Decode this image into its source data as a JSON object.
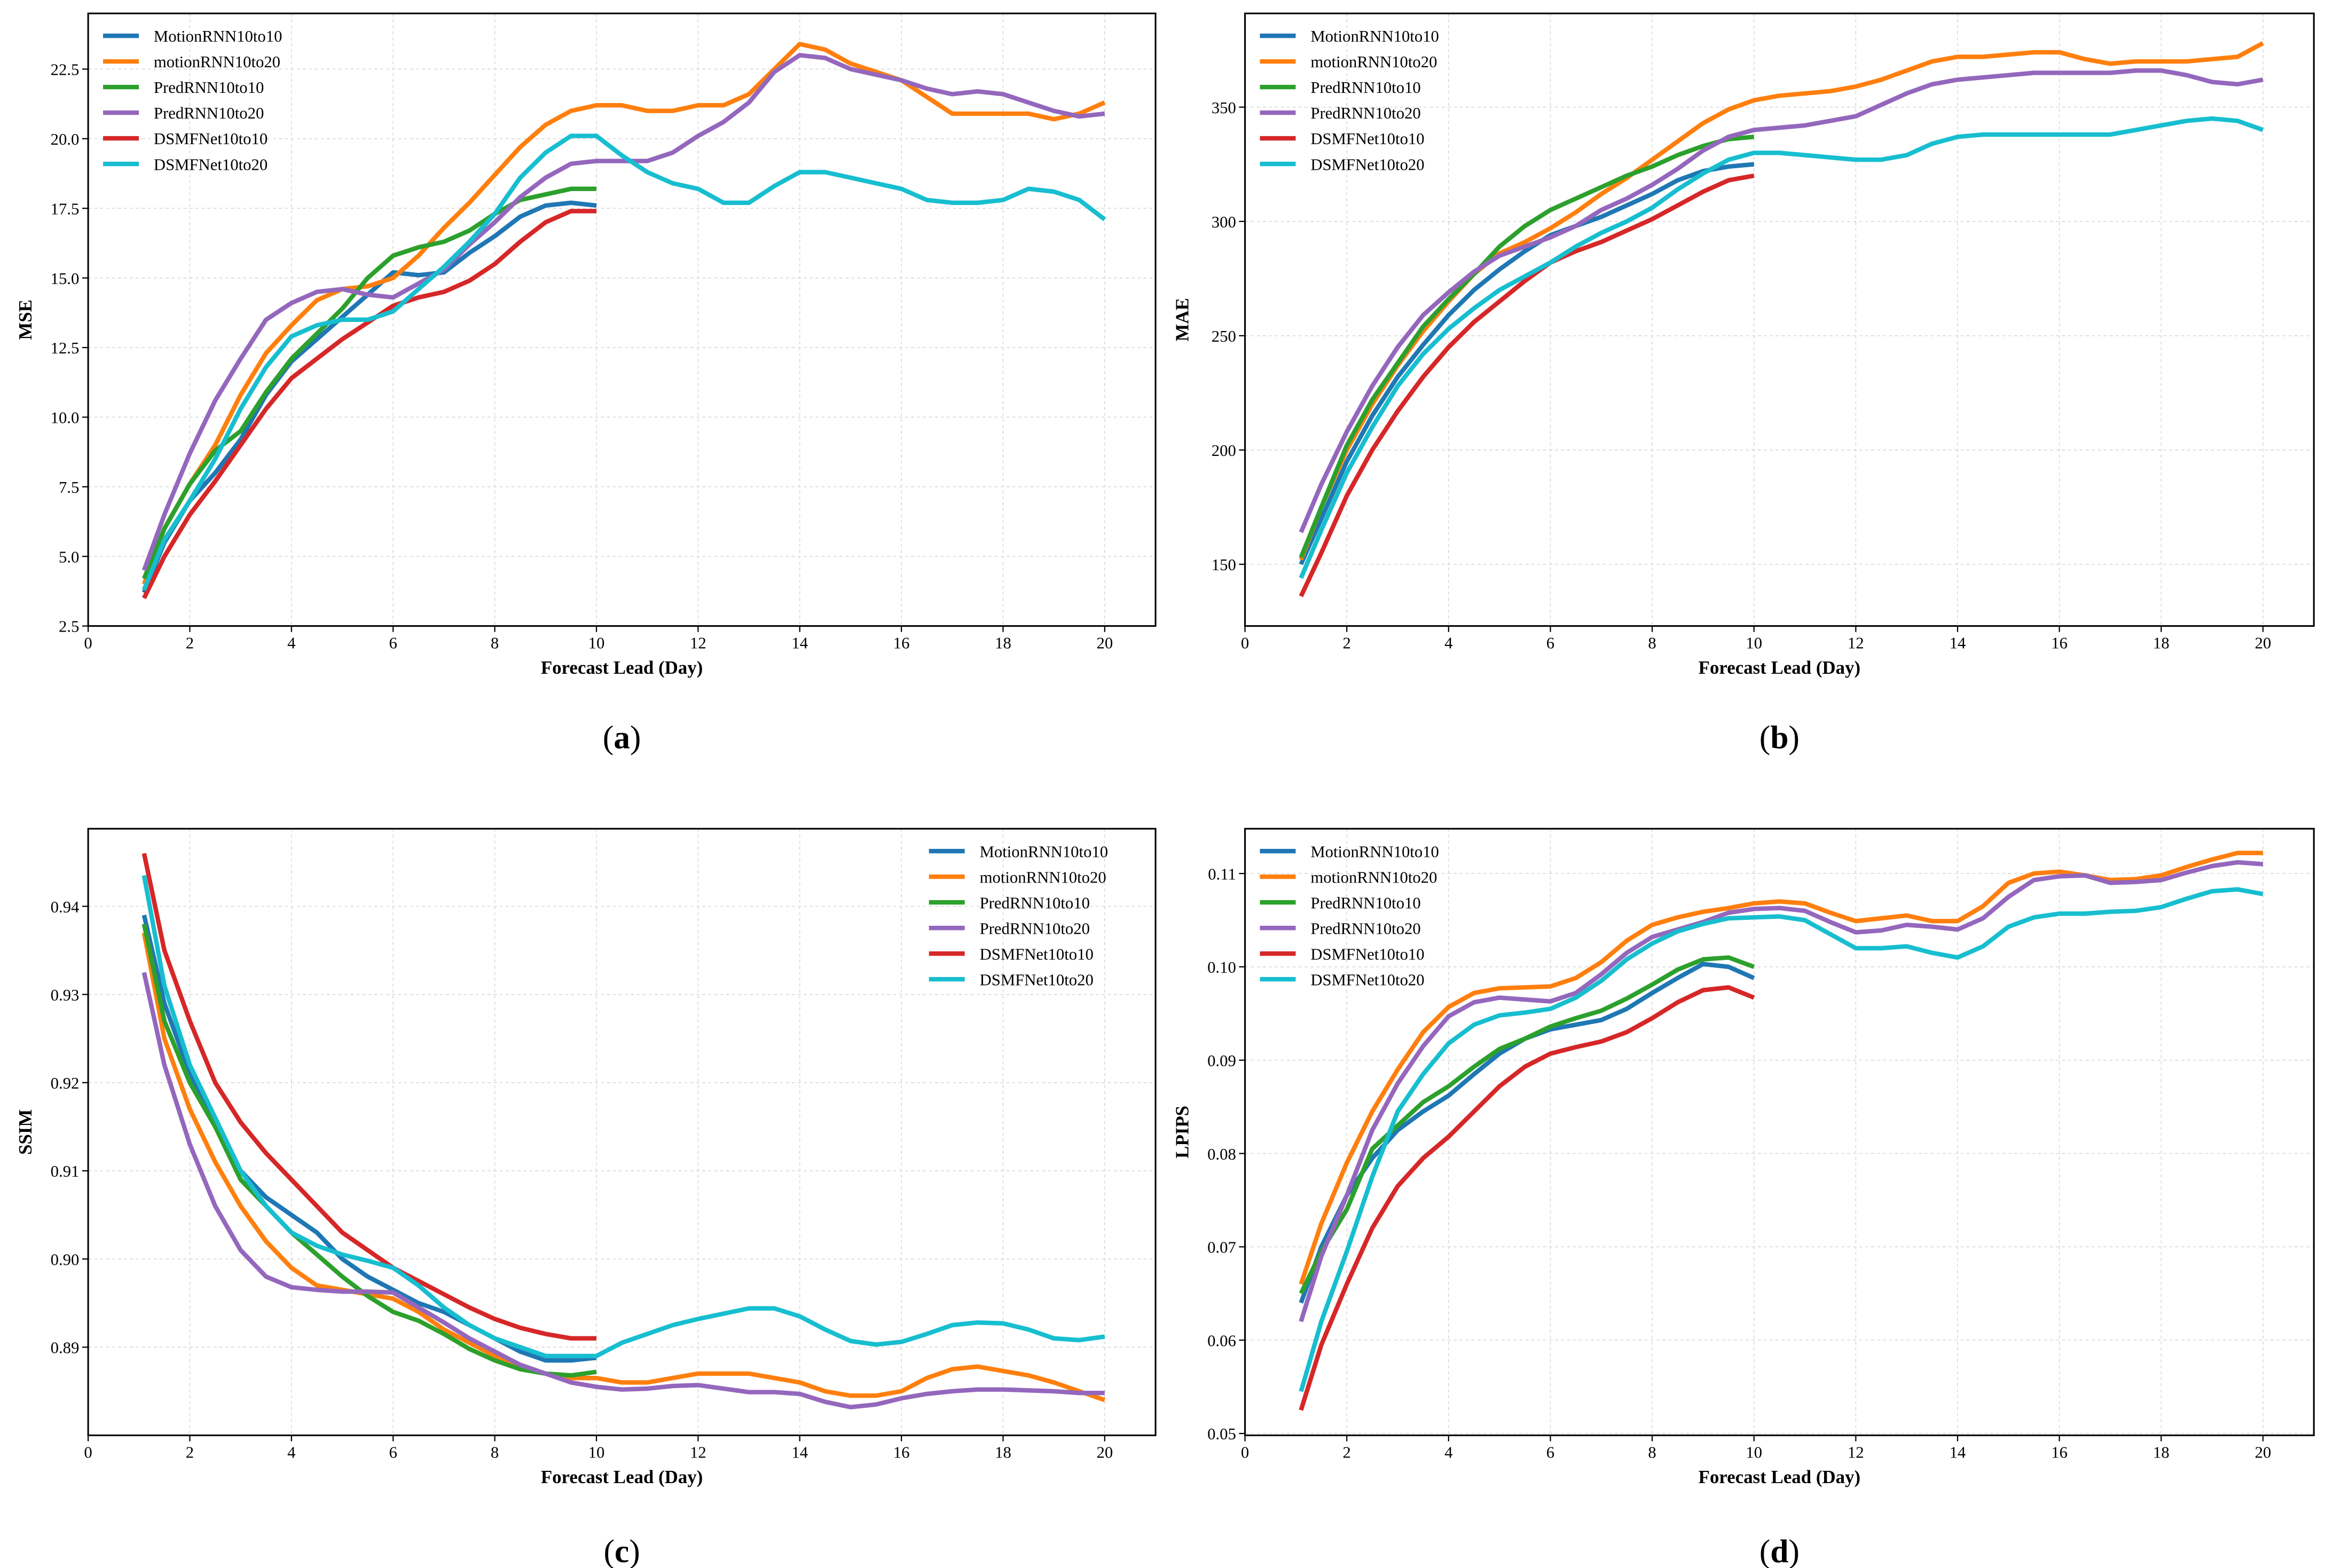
{
  "colors": {
    "MotionRNN10to10": "#1f77b4",
    "motionRNN10to20": "#ff7f0e",
    "PredRNN10to10": "#2ca02c",
    "PredRNN10to20": "#9467bd",
    "DSMFNet10to10": "#d62728",
    "DSMFNet10to20": "#17becf"
  },
  "x_short": [
    1.1,
    1.5,
    2,
    2.5,
    3,
    3.5,
    4,
    4.5,
    5,
    5.5,
    6,
    6.5,
    7,
    7.5,
    8,
    8.5,
    9,
    9.5,
    10
  ],
  "x_long": [
    1.1,
    1.5,
    2,
    2.5,
    3,
    3.5,
    4,
    4.5,
    5,
    5.5,
    6,
    6.5,
    7,
    7.5,
    8,
    8.5,
    9,
    9.5,
    10,
    10.5,
    11,
    11.5,
    12,
    12.5,
    13,
    13.5,
    14,
    14.5,
    15,
    15.5,
    16,
    16.5,
    17,
    17.5,
    18,
    18.5,
    19,
    19.5,
    20
  ],
  "chart_data": [
    {
      "type": "line",
      "caption_letter": "a",
      "xlabel": "Forecast Lead (Day)",
      "ylabel": "MSE",
      "xlim": [
        0,
        21
      ],
      "ylim": [
        2.5,
        24.5
      ],
      "xticks": [
        "0",
        "2",
        "4",
        "6",
        "8",
        "10",
        "12",
        "14",
        "16",
        "18",
        "20"
      ],
      "yticks": [
        "2.5",
        "5.0",
        "7.5",
        "10.0",
        "12.5",
        "15.0",
        "17.5",
        "20.0",
        "22.5"
      ],
      "grid": true,
      "legend_position": "top-left",
      "series": [
        {
          "name": "MotionRNN10to10",
          "x": "short",
          "values": [
            3.7,
            5.5,
            7.0,
            8.0,
            9.2,
            10.8,
            12.0,
            12.8,
            13.6,
            14.4,
            15.2,
            15.1,
            15.2,
            15.9,
            16.5,
            17.2,
            17.6,
            17.7,
            17.6
          ]
        },
        {
          "name": "motionRNN10to20",
          "x": "long",
          "values": [
            4.0,
            6.0,
            7.6,
            9.0,
            10.8,
            12.3,
            13.3,
            14.2,
            14.6,
            14.7,
            15.0,
            15.8,
            16.8,
            17.7,
            18.7,
            19.7,
            20.5,
            21.0,
            21.2,
            21.2,
            21.0,
            21.0,
            21.2,
            21.2,
            21.6,
            22.5,
            23.4,
            23.2,
            22.7,
            22.4,
            22.1,
            21.5,
            20.9,
            20.9,
            20.9,
            20.9,
            20.7,
            20.9,
            21.3
          ]
        },
        {
          "name": "PredRNN10to10",
          "x": "short",
          "values": [
            4.2,
            6.0,
            7.6,
            8.8,
            9.5,
            10.9,
            12.1,
            13.0,
            13.9,
            15.0,
            15.8,
            16.1,
            16.3,
            16.7,
            17.3,
            17.8,
            18.0,
            18.2,
            18.2
          ]
        },
        {
          "name": "PredRNN10to20",
          "x": "long",
          "values": [
            4.5,
            6.5,
            8.7,
            10.6,
            12.1,
            13.5,
            14.1,
            14.5,
            14.6,
            14.4,
            14.3,
            14.8,
            15.3,
            16.2,
            17.0,
            17.9,
            18.6,
            19.1,
            19.2,
            19.2,
            19.2,
            19.5,
            20.1,
            20.6,
            21.3,
            22.4,
            23.0,
            22.9,
            22.5,
            22.3,
            22.1,
            21.8,
            21.6,
            21.7,
            21.6,
            21.3,
            21.0,
            20.8,
            20.9
          ]
        },
        {
          "name": "DSMFNet10to10",
          "x": "short",
          "values": [
            3.5,
            5.0,
            6.5,
            7.7,
            9.0,
            10.3,
            11.4,
            12.1,
            12.8,
            13.4,
            14.0,
            14.3,
            14.5,
            14.9,
            15.5,
            16.3,
            17.0,
            17.4,
            17.4
          ]
        },
        {
          "name": "DSMFNet10to20",
          "x": "long",
          "values": [
            3.8,
            5.6,
            7.0,
            8.5,
            10.3,
            11.8,
            12.9,
            13.3,
            13.5,
            13.5,
            13.8,
            14.6,
            15.4,
            16.3,
            17.3,
            18.6,
            19.5,
            20.1,
            20.1,
            19.4,
            18.8,
            18.4,
            18.2,
            17.7,
            17.7,
            18.3,
            18.8,
            18.8,
            18.6,
            18.4,
            18.2,
            17.8,
            17.7,
            17.7,
            17.8,
            18.2,
            18.1,
            17.8,
            17.1
          ]
        }
      ]
    },
    {
      "type": "line",
      "caption_letter": "b",
      "xlabel": "Forecast Lead (Day)",
      "ylabel": "MAE",
      "xlim": [
        0,
        21
      ],
      "ylim": [
        123,
        391
      ],
      "xticks": [
        "0",
        "2",
        "4",
        "6",
        "8",
        "10",
        "12",
        "14",
        "16",
        "18",
        "20"
      ],
      "yticks": [
        "150",
        "200",
        "250",
        "300",
        "350"
      ],
      "grid": true,
      "legend_position": "top-left",
      "series": [
        {
          "name": "MotionRNN10to10",
          "x": "short",
          "values": [
            150,
            170,
            195,
            215,
            232,
            246,
            259,
            270,
            279,
            287,
            294,
            298,
            302,
            307,
            312,
            318,
            322,
            324,
            325
          ]
        },
        {
          "name": "motionRNN10to20",
          "x": "long",
          "values": [
            152,
            175,
            200,
            220,
            237,
            252,
            265,
            277,
            286,
            291,
            297,
            304,
            312,
            319,
            327,
            335,
            343,
            349,
            353,
            355,
            356,
            357,
            359,
            362,
            366,
            370,
            372,
            372,
            373,
            374,
            374,
            371,
            369,
            370,
            370,
            370,
            371,
            372,
            378
          ]
        },
        {
          "name": "PredRNN10to10",
          "x": "short",
          "values": [
            153,
            175,
            202,
            222,
            238,
            254,
            266,
            277,
            289,
            298,
            305,
            310,
            315,
            320,
            324,
            329,
            333,
            336,
            337
          ]
        },
        {
          "name": "PredRNN10to20",
          "x": "long",
          "values": [
            164,
            185,
            208,
            228,
            245,
            259,
            269,
            278,
            285,
            289,
            293,
            298,
            305,
            310,
            316,
            323,
            331,
            337,
            340,
            341,
            342,
            344,
            346,
            351,
            356,
            360,
            362,
            363,
            364,
            365,
            365,
            365,
            365,
            366,
            366,
            364,
            361,
            360,
            362
          ]
        },
        {
          "name": "DSMFNet10to10",
          "x": "short",
          "values": [
            136,
            155,
            180,
            200,
            217,
            232,
            245,
            256,
            265,
            274,
            282,
            287,
            291,
            296,
            301,
            307,
            313,
            318,
            320
          ]
        },
        {
          "name": "DSMFNet10to20",
          "x": "long",
          "values": [
            144,
            165,
            190,
            210,
            228,
            242,
            253,
            262,
            270,
            276,
            282,
            289,
            295,
            300,
            306,
            314,
            321,
            327,
            330,
            330,
            329,
            328,
            327,
            327,
            329,
            334,
            337,
            338,
            338,
            338,
            338,
            338,
            338,
            340,
            342,
            344,
            345,
            344,
            340
          ]
        }
      ]
    },
    {
      "type": "line",
      "caption_letter": "c",
      "xlabel": "Forecast Lead (Day)",
      "ylabel": "SSIM",
      "xlim": [
        0,
        21
      ],
      "ylim": [
        0.88,
        0.9488
      ],
      "xticks": [
        "0",
        "2",
        "4",
        "6",
        "8",
        "10",
        "12",
        "14",
        "16",
        "18",
        "20"
      ],
      "yticks": [
        "0.89",
        "0.90",
        "0.91",
        "0.92",
        "0.93",
        "0.94"
      ],
      "grid": true,
      "legend_position": "top-right",
      "series": [
        {
          "name": "MotionRNN10to10",
          "x": "short",
          "values": [
            0.939,
            0.929,
            0.921,
            0.915,
            0.91,
            0.907,
            0.905,
            0.903,
            0.9,
            0.898,
            0.8965,
            0.895,
            0.894,
            0.8925,
            0.891,
            0.8895,
            0.8885,
            0.8885,
            0.8888
          ]
        },
        {
          "name": "motionRNN10to20",
          "x": "long",
          "values": [
            0.937,
            0.925,
            0.917,
            0.911,
            0.906,
            0.902,
            0.899,
            0.897,
            0.8965,
            0.896,
            0.8955,
            0.894,
            0.892,
            0.8905,
            0.889,
            0.888,
            0.887,
            0.8865,
            0.8865,
            0.886,
            0.886,
            0.8865,
            0.887,
            0.887,
            0.887,
            0.8865,
            0.886,
            0.885,
            0.8845,
            0.8845,
            0.885,
            0.8865,
            0.8875,
            0.8878,
            0.8873,
            0.8868,
            0.886,
            0.885,
            0.884
          ]
        },
        {
          "name": "PredRNN10to10",
          "x": "short",
          "values": [
            0.938,
            0.927,
            0.92,
            0.915,
            0.909,
            0.906,
            0.903,
            0.9005,
            0.898,
            0.8958,
            0.894,
            0.893,
            0.8915,
            0.8898,
            0.8885,
            0.8875,
            0.887,
            0.8868,
            0.8872
          ]
        },
        {
          "name": "PredRNN10to20",
          "x": "long",
          "values": [
            0.9325,
            0.922,
            0.913,
            0.906,
            0.901,
            0.898,
            0.8968,
            0.8965,
            0.8963,
            0.8963,
            0.8962,
            0.8945,
            0.8928,
            0.891,
            0.8895,
            0.888,
            0.887,
            0.886,
            0.8855,
            0.8852,
            0.8853,
            0.8856,
            0.8857,
            0.8853,
            0.8849,
            0.8849,
            0.8847,
            0.8838,
            0.8832,
            0.8835,
            0.8842,
            0.8847,
            0.885,
            0.8852,
            0.8852,
            0.8851,
            0.885,
            0.8848,
            0.8848
          ]
        },
        {
          "name": "DSMFNet10to10",
          "x": "short",
          "values": [
            0.946,
            0.935,
            0.927,
            0.92,
            0.9155,
            0.912,
            0.909,
            0.906,
            0.903,
            0.901,
            0.899,
            0.8975,
            0.896,
            0.8945,
            0.8932,
            0.8922,
            0.8915,
            0.891,
            0.891
          ]
        },
        {
          "name": "DSMFNet10to20",
          "x": "long",
          "values": [
            0.9435,
            0.931,
            0.922,
            0.916,
            0.91,
            0.906,
            0.903,
            0.9015,
            0.9005,
            0.8998,
            0.899,
            0.897,
            0.8945,
            0.8925,
            0.891,
            0.89,
            0.889,
            0.889,
            0.889,
            0.8905,
            0.8915,
            0.8925,
            0.8932,
            0.8938,
            0.8944,
            0.8944,
            0.8935,
            0.892,
            0.8907,
            0.8903,
            0.8906,
            0.8915,
            0.8925,
            0.8928,
            0.8927,
            0.892,
            0.891,
            0.8908,
            0.8912
          ]
        }
      ]
    },
    {
      "type": "line",
      "caption_letter": "d",
      "xlabel": "Forecast Lead (Day)",
      "ylabel": "LPIPS",
      "xlim": [
        0,
        21
      ],
      "ylim": [
        0.0498,
        0.1148
      ],
      "xticks": [
        "0",
        "2",
        "4",
        "6",
        "8",
        "10",
        "12",
        "14",
        "16",
        "18",
        "20"
      ],
      "yticks": [
        "0.05",
        "0.06",
        "0.07",
        "0.08",
        "0.09",
        "0.10",
        "0.11"
      ],
      "grid": true,
      "legend_position": "top-left",
      "series": [
        {
          "name": "MotionRNN10to10",
          "x": "short",
          "values": [
            0.064,
            0.07,
            0.0755,
            0.0795,
            0.0825,
            0.0845,
            0.0862,
            0.0885,
            0.0907,
            0.0923,
            0.0933,
            0.0938,
            0.0943,
            0.0955,
            0.0972,
            0.0988,
            0.1003,
            0.1,
            0.0988
          ]
        },
        {
          "name": "motionRNN10to20",
          "x": "long",
          "values": [
            0.066,
            0.0725,
            0.079,
            0.0845,
            0.089,
            0.093,
            0.0957,
            0.0972,
            0.0977,
            0.0978,
            0.0979,
            0.0988,
            0.1005,
            0.1028,
            0.1045,
            0.1053,
            0.1059,
            0.1063,
            0.1068,
            0.107,
            0.1068,
            0.1058,
            0.1049,
            0.1052,
            0.1055,
            0.1049,
            0.1049,
            0.1065,
            0.109,
            0.11,
            0.1102,
            0.1098,
            0.1093,
            0.1094,
            0.1098,
            0.1107,
            0.1115,
            0.1122,
            0.1122
          ]
        },
        {
          "name": "PredRNN10to10",
          "x": "short",
          "values": [
            0.065,
            0.0695,
            0.074,
            0.0805,
            0.083,
            0.0855,
            0.0872,
            0.0893,
            0.0912,
            0.0923,
            0.0936,
            0.0945,
            0.0953,
            0.0966,
            0.0981,
            0.0997,
            0.1008,
            0.101,
            0.1
          ]
        },
        {
          "name": "PredRNN10to20",
          "x": "long",
          "values": [
            0.062,
            0.069,
            0.0755,
            0.0825,
            0.0875,
            0.0915,
            0.0947,
            0.0962,
            0.0967,
            0.0965,
            0.0963,
            0.0972,
            0.0992,
            0.1015,
            0.1032,
            0.104,
            0.1048,
            0.1058,
            0.1062,
            0.1063,
            0.106,
            0.1048,
            0.1037,
            0.1039,
            0.1045,
            0.1043,
            0.104,
            0.1052,
            0.1075,
            0.1093,
            0.1097,
            0.1098,
            0.109,
            0.1091,
            0.1093,
            0.1101,
            0.1108,
            0.1112,
            0.111
          ]
        },
        {
          "name": "DSMFNet10to10",
          "x": "short",
          "values": [
            0.0525,
            0.0595,
            0.066,
            0.072,
            0.0765,
            0.0795,
            0.0818,
            0.0845,
            0.0872,
            0.0893,
            0.0907,
            0.0914,
            0.092,
            0.093,
            0.0945,
            0.0962,
            0.0975,
            0.0978,
            0.0967
          ]
        },
        {
          "name": "DSMFNet10to20",
          "x": "long",
          "values": [
            0.0545,
            0.062,
            0.0695,
            0.0775,
            0.0845,
            0.0885,
            0.0918,
            0.0938,
            0.0948,
            0.0951,
            0.0955,
            0.0967,
            0.0985,
            0.1008,
            0.1025,
            0.1038,
            0.1046,
            0.1052,
            0.1053,
            0.1054,
            0.105,
            0.1035,
            0.102,
            0.102,
            0.1022,
            0.1015,
            0.101,
            0.1022,
            0.1043,
            0.1053,
            0.1057,
            0.1057,
            0.1059,
            0.106,
            0.1064,
            0.1073,
            0.1081,
            0.1083,
            0.1078
          ]
        }
      ]
    }
  ]
}
